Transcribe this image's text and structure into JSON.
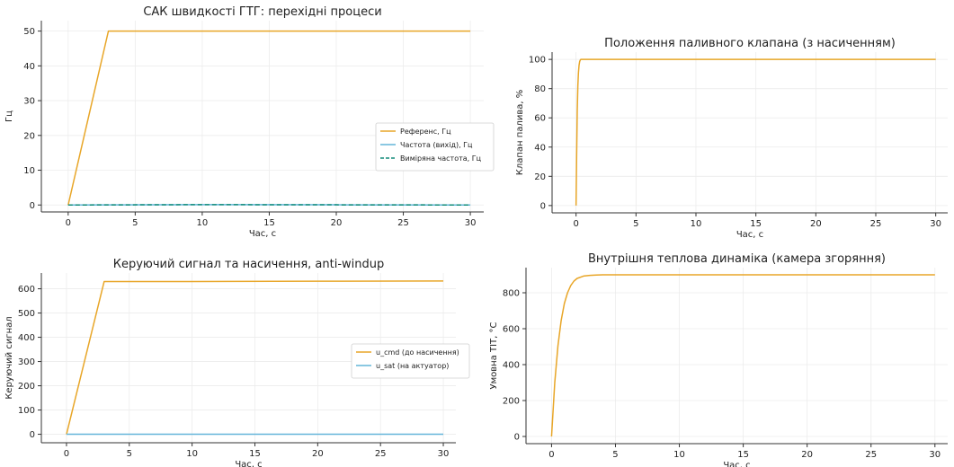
{
  "chart_data": [
    {
      "type": "line",
      "title": "САК швидкості ГТГ: перехідні процеси",
      "xlabel": "Час, с",
      "ylabel": "Гц",
      "xlim": [
        -2,
        31
      ],
      "ylim": [
        -2,
        53
      ],
      "xticks": [
        0,
        5,
        10,
        15,
        20,
        25,
        30
      ],
      "yticks": [
        0,
        10,
        20,
        30,
        40,
        50
      ],
      "grid": true,
      "legend_position": "center-right",
      "series": [
        {
          "name": "Референс, Гц",
          "color": "#e8a628",
          "dash": "solid",
          "x": [
            0,
            3,
            30
          ],
          "y": [
            0,
            50,
            50
          ]
        },
        {
          "name": "Частота (вихід), Гц",
          "color": "#64b5d9",
          "dash": "solid",
          "x": [
            0,
            10,
            20,
            30
          ],
          "y": [
            0,
            0.1,
            0.05,
            0
          ]
        },
        {
          "name": "Виміряна частота, Гц",
          "color": "#138c7a",
          "dash": "dashed",
          "x": [
            0,
            10,
            20,
            30
          ],
          "y": [
            0,
            0.1,
            0.05,
            0
          ]
        }
      ]
    },
    {
      "type": "line",
      "title": "Положення паливного клапана (з насиченням)",
      "xlabel": "Час, с",
      "ylabel": "Клапан палива, %",
      "xlim": [
        -2,
        31
      ],
      "ylim": [
        -5,
        105
      ],
      "xticks": [
        0,
        5,
        10,
        15,
        20,
        25,
        30
      ],
      "yticks": [
        0,
        20,
        40,
        60,
        80,
        100
      ],
      "grid": true,
      "series": [
        {
          "color": "#e8a628",
          "dash": "solid",
          "x": [
            0,
            0.05,
            0.1,
            0.15,
            0.2,
            0.25,
            0.3,
            0.35,
            0.4,
            30
          ],
          "y": [
            0,
            35,
            65,
            82,
            91,
            96,
            98.5,
            99.5,
            100,
            100
          ]
        }
      ]
    },
    {
      "type": "line",
      "title": "Керуючий сигнал та насичення, anti-windup",
      "xlabel": "Час, с",
      "ylabel": "Керуючий сигнал",
      "xlim": [
        -2,
        31
      ],
      "ylim": [
        -35,
        665
      ],
      "xticks": [
        0,
        5,
        10,
        15,
        20,
        25,
        30
      ],
      "yticks": [
        0,
        100,
        200,
        300,
        400,
        500,
        600
      ],
      "grid": true,
      "legend_position": "center-right",
      "series": [
        {
          "name": "u_cmd (до насичення)",
          "color": "#e8a628",
          "dash": "solid",
          "x": [
            0,
            3,
            10,
            20,
            30
          ],
          "y": [
            0,
            630,
            630,
            631,
            632
          ]
        },
        {
          "name": "u_sat (на актуатор)",
          "color": "#64b5d9",
          "dash": "solid",
          "x": [
            0,
            30
          ],
          "y": [
            0,
            0
          ]
        }
      ]
    },
    {
      "type": "line",
      "title": "Внутрішня теплова динаміка (камера згоряння)",
      "xlabel": "Час, с",
      "ylabel": "Умовна ТІТ, °C",
      "xlim": [
        -2,
        31
      ],
      "ylim": [
        -40,
        940
      ],
      "xticks": [
        0,
        5,
        10,
        15,
        20,
        25,
        30
      ],
      "yticks": [
        0,
        200,
        400,
        600,
        800
      ],
      "grid": true,
      "series": [
        {
          "color": "#e8a628",
          "dash": "solid",
          "x": [
            0,
            0.25,
            0.5,
            0.75,
            1,
            1.25,
            1.5,
            1.75,
            2,
            2.5,
            3,
            3.5,
            4,
            5,
            6,
            8,
            10,
            15,
            20,
            25,
            30
          ],
          "y": [
            0,
            300,
            505,
            645,
            740,
            800,
            840,
            865,
            880,
            893,
            897,
            899,
            900,
            900,
            900,
            900,
            900,
            900,
            900,
            900,
            900
          ]
        }
      ]
    }
  ]
}
